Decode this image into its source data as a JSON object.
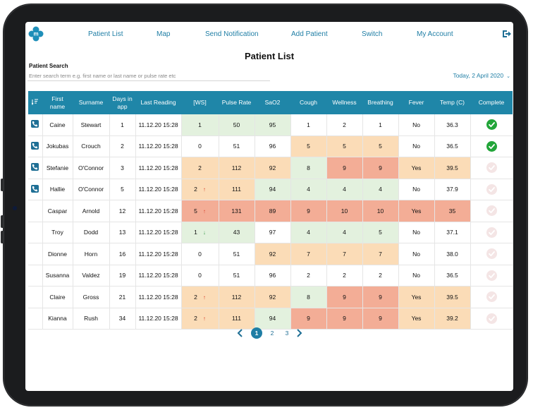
{
  "nav": {
    "logo_letter": "m",
    "items": [
      "Patient List",
      "Map",
      "Send Notification",
      "Add Patient",
      "Switch",
      "My Account"
    ]
  },
  "page": {
    "title": "Patient List"
  },
  "search": {
    "label": "Patient Search",
    "placeholder": "Enter search term e.g. first name or last name or pulse rate etc",
    "value": ""
  },
  "date_selector": "Today, 2 April 2020",
  "colors": {
    "accent": "#1f86a8",
    "green": "#e3f1de",
    "orange": "#fbdcb7",
    "red": "#f3ad96",
    "check": "#22a539"
  },
  "table": {
    "columns": [
      "First name",
      "Surname",
      "Days in app",
      "Last Reading",
      "[WS]",
      "Pulse Rate",
      "SaO2",
      "Cough",
      "Wellness",
      "Breathing",
      "Fever",
      "Temp (C)",
      "Complete"
    ],
    "rows": [
      {
        "phone": true,
        "first": "Caine",
        "surname": "Stewart",
        "days": "1",
        "reading": "11.12.20 15:28",
        "ws": "1",
        "ws_trend": "",
        "pulse": "50",
        "sao2": "95",
        "cough": "1",
        "wellness": "2",
        "breathing": "1",
        "fever": "No",
        "temp": "36.3",
        "complete": true,
        "shade": {
          "ws": "g",
          "pulse": "g",
          "sao2": "g",
          "cough": "",
          "wellness": "",
          "breathing": "",
          "fever": "",
          "temp": ""
        }
      },
      {
        "phone": true,
        "first": "Jokubas",
        "surname": "Crouch",
        "days": "2",
        "reading": "11.12.20 15:28",
        "ws": "0",
        "ws_trend": "",
        "pulse": "51",
        "sao2": "96",
        "cough": "5",
        "wellness": "5",
        "breathing": "5",
        "fever": "No",
        "temp": "36.5",
        "complete": true,
        "shade": {
          "ws": "",
          "pulse": "",
          "sao2": "",
          "cough": "o",
          "wellness": "o",
          "breathing": "o",
          "fever": "",
          "temp": ""
        }
      },
      {
        "phone": true,
        "first": "Stefanie",
        "surname": "O'Connor",
        "days": "3",
        "reading": "11.12.20 15:28",
        "ws": "2",
        "ws_trend": "",
        "pulse": "112",
        "sao2": "92",
        "cough": "8",
        "wellness": "9",
        "breathing": "9",
        "fever": "Yes",
        "temp": "39.5",
        "complete": false,
        "shade": {
          "ws": "o",
          "pulse": "o",
          "sao2": "o",
          "cough": "g",
          "wellness": "r",
          "breathing": "r",
          "fever": "o",
          "temp": "o"
        }
      },
      {
        "phone": true,
        "first": "Hallie",
        "surname": "O'Connor",
        "days": "5",
        "reading": "11.12.20 15:28",
        "ws": "2",
        "ws_trend": "up",
        "pulse": "111",
        "sao2": "94",
        "cough": "4",
        "wellness": "4",
        "breathing": "4",
        "fever": "No",
        "temp": "37.9",
        "complete": false,
        "shade": {
          "ws": "o",
          "pulse": "o",
          "sao2": "g",
          "cough": "g",
          "wellness": "g",
          "breathing": "g",
          "fever": "",
          "temp": ""
        }
      },
      {
        "phone": false,
        "first": "Caspar",
        "surname": "Arnold",
        "days": "12",
        "reading": "11.12.20 15:28",
        "ws": "5",
        "ws_trend": "up",
        "pulse": "131",
        "sao2": "89",
        "cough": "9",
        "wellness": "10",
        "breathing": "10",
        "fever": "Yes",
        "temp": "35",
        "complete": false,
        "shade": {
          "ws": "r",
          "pulse": "r",
          "sao2": "r",
          "cough": "r",
          "wellness": "r",
          "breathing": "r",
          "fever": "r",
          "temp": "r"
        }
      },
      {
        "phone": false,
        "first": "Troy",
        "surname": "Dodd",
        "days": "13",
        "reading": "11.12.20 15:28",
        "ws": "1",
        "ws_trend": "down",
        "pulse": "43",
        "sao2": "97",
        "cough": "4",
        "wellness": "4",
        "breathing": "5",
        "fever": "No",
        "temp": "37.1",
        "complete": false,
        "shade": {
          "ws": "g",
          "pulse": "g",
          "sao2": "",
          "cough": "g",
          "wellness": "g",
          "breathing": "g",
          "fever": "",
          "temp": ""
        }
      },
      {
        "phone": false,
        "first": "Dionne",
        "surname": "Horn",
        "days": "16",
        "reading": "11.12.20 15:28",
        "ws": "0",
        "ws_trend": "",
        "pulse": "51",
        "sao2": "92",
        "cough": "7",
        "wellness": "7",
        "breathing": "7",
        "fever": "No",
        "temp": "38.0",
        "complete": false,
        "shade": {
          "ws": "",
          "pulse": "",
          "sao2": "o",
          "cough": "o",
          "wellness": "o",
          "breathing": "o",
          "fever": "",
          "temp": ""
        }
      },
      {
        "phone": false,
        "first": "Susanna",
        "surname": "Valdez",
        "days": "19",
        "reading": "11.12.20 15:28",
        "ws": "0",
        "ws_trend": "",
        "pulse": "51",
        "sao2": "96",
        "cough": "2",
        "wellness": "2",
        "breathing": "2",
        "fever": "No",
        "temp": "36.5",
        "complete": false,
        "shade": {
          "ws": "",
          "pulse": "",
          "sao2": "",
          "cough": "",
          "wellness": "",
          "breathing": "",
          "fever": "",
          "temp": ""
        }
      },
      {
        "phone": false,
        "first": "Claire",
        "surname": "Gross",
        "days": "21",
        "reading": "11.12.20 15:28",
        "ws": "2",
        "ws_trend": "up",
        "pulse": "112",
        "sao2": "92",
        "cough": "8",
        "wellness": "9",
        "breathing": "9",
        "fever": "Yes",
        "temp": "39.5",
        "complete": false,
        "shade": {
          "ws": "o",
          "pulse": "o",
          "sao2": "o",
          "cough": "g",
          "wellness": "r",
          "breathing": "r",
          "fever": "o",
          "temp": "o"
        }
      },
      {
        "phone": false,
        "first": "Kianna",
        "surname": "Rush",
        "days": "34",
        "reading": "11.12.20 15:28",
        "ws": "2",
        "ws_trend": "up",
        "pulse": "111",
        "sao2": "94",
        "cough": "9",
        "wellness": "9",
        "breathing": "9",
        "fever": "Yes",
        "temp": "39.2",
        "complete": false,
        "shade": {
          "ws": "o",
          "pulse": "o",
          "sao2": "g",
          "cough": "r",
          "wellness": "r",
          "breathing": "r",
          "fever": "o",
          "temp": "o"
        }
      }
    ]
  },
  "pagination": {
    "pages": [
      "1",
      "2",
      "3"
    ],
    "current": "1"
  }
}
